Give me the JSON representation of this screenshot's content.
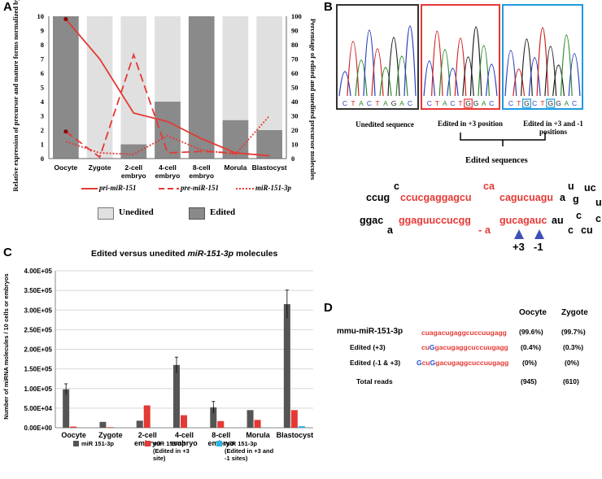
{
  "panels": {
    "A": "A",
    "B": "B",
    "C": "C",
    "D": "D"
  },
  "panelA": {
    "y_left_label": "Relative expression of precursor and mature forms normalized by U6",
    "y_right_label": "Percentage of edited and unedited precursor molecules",
    "legend_series": [
      "pri-miR-151",
      "pre-miR-151",
      "miR-151-3p"
    ],
    "legend_boxes": [
      "Unedited",
      "Edited"
    ]
  },
  "panelB": {
    "chromatograms": [
      {
        "bases": [
          "C",
          "T",
          "A",
          "C",
          "T",
          "A",
          "G",
          "A",
          "C"
        ],
        "caption": "Unedited sequence",
        "frame": "#333333"
      },
      {
        "bases": [
          "C",
          "T",
          "A",
          "C",
          "T",
          "G",
          "G",
          "A",
          "C"
        ],
        "caption": "Edited in +3 position",
        "frame": "#e53935"
      },
      {
        "bases": [
          "C",
          "T",
          "G",
          "C",
          "T",
          "G",
          "G",
          "A",
          "C"
        ],
        "caption": "Edited in +3 and -1 positions",
        "frame": "#1e9be0"
      }
    ],
    "brace_label": "Edited sequences",
    "hairpin": {
      "top_left": "ccug",
      "top_bulge1": "c",
      "top_red1": "ccucgaggagcu",
      "top_bulge2": "ca",
      "top_red2": "cagucuagu",
      "top_a": "a",
      "top_u": "u",
      "top_g": "g",
      "top_uc": "uc",
      "top_u2": "u",
      "bot_left": "ggac",
      "bot_a": "a",
      "bot_red1": "ggaguuccucgg",
      "bot_dash": "-",
      "bot_a2": "a",
      "bot_red2": "gucagauc",
      "bot_au": "au",
      "bot_c": "c",
      "bot_c2": "c",
      "bot_cu": "cu",
      "bot_c3": "c",
      "pos_plus3": "+3",
      "pos_minus1": "-1"
    }
  },
  "chart_data": [
    {
      "type": "line",
      "panel": "A",
      "categories": [
        "Oocyte",
        "Zygote",
        "2-cell embryo",
        "4-cell embryo",
        "8-cell embryo",
        "Morula",
        "Blastocyst"
      ],
      "ylim_left": [
        0,
        10
      ],
      "ylim_right": [
        0,
        100
      ],
      "yticks_left": [
        "0",
        "1",
        "2",
        "3",
        "4",
        "5",
        "6",
        "7",
        "8",
        "9",
        "10"
      ],
      "yticks_right": [
        "0",
        "10",
        "20",
        "30",
        "40",
        "50",
        "60",
        "70",
        "80",
        "90",
        "100"
      ],
      "series": [
        {
          "name": "pri-miR-151",
          "style": "solid",
          "values": [
            9.8,
            7.0,
            3.2,
            2.6,
            1.4,
            0.4,
            0.2
          ]
        },
        {
          "name": "pre-miR-151",
          "style": "dashed",
          "values": [
            1.9,
            0.1,
            7.3,
            0.4,
            0.5,
            0.4,
            0.2
          ]
        },
        {
          "name": "miR-151-3p",
          "style": "dotted",
          "values": [
            1.2,
            0.4,
            0.3,
            1.6,
            0.6,
            0.3,
            3.0
          ]
        }
      ],
      "edited_pct": [
        100,
        0,
        10,
        40,
        100,
        27,
        20
      ],
      "colors": {
        "unedited": "#e0e0e0",
        "edited": "#8a8a8a",
        "line": "#e53935"
      }
    },
    {
      "type": "bar",
      "panel": "C",
      "title": "Edited versus unedited miR-151-3p molecules",
      "ylabel": "Number of miRNA molecules / 10 cells or embryos",
      "categories": [
        "Oocyte",
        "Zygote",
        "2-cell embryo",
        "4-cell embryo",
        "8-cell embryo",
        "Morula",
        "Blastocyst"
      ],
      "ylim": [
        0,
        400000
      ],
      "yticks": [
        "0.00E+00",
        "5.00E+04",
        "1.00E+05",
        "1.50E+05",
        "2.00E+05",
        "2.50E+05",
        "3.00E+05",
        "3.50E+05",
        "4.00E+05"
      ],
      "series": [
        {
          "name": "miR 151-3p",
          "color": "#555555",
          "values": [
            98000,
            15000,
            18000,
            160000,
            52000,
            45000,
            315000
          ],
          "err": [
            14000,
            0,
            0,
            20000,
            15000,
            0,
            36000
          ]
        },
        {
          "name": "miR 151-3p (Edited in +3 site)",
          "color": "#e53935",
          "values": [
            3000,
            1500,
            57000,
            32000,
            17000,
            20000,
            45000
          ],
          "err": [
            0,
            0,
            0,
            0,
            0,
            0,
            0
          ]
        },
        {
          "name": "miR 151-3p (Edited in +3 and -1 sites)",
          "color": "#29b6e6",
          "values": [
            0,
            500,
            300,
            400,
            300,
            200,
            4000
          ],
          "err": [
            0,
            0,
            0,
            0,
            0,
            0,
            0
          ]
        }
      ],
      "grid": true
    }
  ],
  "panelC_title": {
    "pre": "Edited versus unedited ",
    "ital": "miR-151-3p",
    "post": " molecules"
  },
  "panelD": {
    "headers": [
      "Oocyte",
      "Zygote"
    ],
    "rows": [
      {
        "label": "mmu-miR-151-3p",
        "pre_blue": "",
        "pre_red": "",
        "mid_blue": "",
        "seq": "cuagacugaggcuccuugagg",
        "oocyte": "(99.6%)",
        "zygote": "(99.7%)"
      },
      {
        "label": "Edited (+3)",
        "pre_blue": "",
        "pre_red": "cu",
        "mid_blue": "G",
        "seq": "gacugaggcuccuugagg",
        "oocyte": "(0.4%)",
        "zygote": "(0.3%)"
      },
      {
        "label": "Edited (-1 & +3)",
        "pre_blue": "G",
        "pre_red": "cu",
        "mid_blue": "G",
        "seq": "gacugaggcuccuugagg",
        "oocyte": "(0%)",
        "zygote": "(0%)"
      },
      {
        "label": "Total reads",
        "pre_blue": "",
        "pre_red": "",
        "mid_blue": "",
        "seq": "",
        "oocyte": "(945)",
        "zygote": "(610)"
      }
    ]
  }
}
